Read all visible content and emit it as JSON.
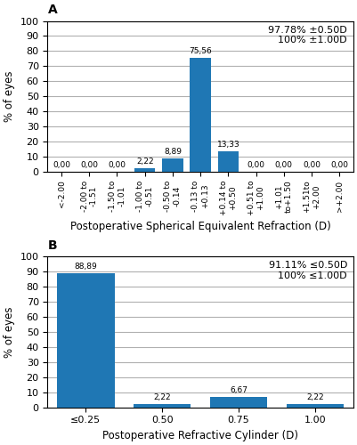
{
  "chart_data": [
    {
      "type": "bar",
      "panel_label": "A",
      "categories": [
        "<-2.00",
        "-2.00 to\n-1.51",
        "-1.50 to\n-1.01",
        "-1.00 to\n-0.51",
        "-0.50 to\n-0.14",
        "-0.13 to\n+0.13",
        "+0.14 to\n+0.50",
        "+0.51 to\n+1.00",
        "+1.01\nto+1.50",
        "+1.51to\n+2.00",
        ">+2.00"
      ],
      "values": [
        0.0,
        0.0,
        0.0,
        2.22,
        8.89,
        75.56,
        13.33,
        0.0,
        0.0,
        0.0,
        0.0
      ],
      "value_labels": [
        "0,00",
        "0,00",
        "0,00",
        "2,22",
        "8,89",
        "75,56",
        "13,33",
        "0,00",
        "0,00",
        "0,00",
        "0,00"
      ],
      "data_labels": true,
      "ylabel": "% of eyes",
      "xlabel": "Postoperative Spherical Equivalent Refraction (D)",
      "ylim": [
        0,
        100
      ],
      "yticks": [
        0,
        10,
        20,
        30,
        40,
        50,
        60,
        70,
        80,
        90,
        100
      ],
      "annotation": "97.78% ±0.50D\n100% ±1.00D",
      "grid": true
    },
    {
      "type": "bar",
      "panel_label": "B",
      "categories": [
        "≤0.25",
        "0.50",
        "0.75",
        "1.00"
      ],
      "values": [
        88.89,
        2.22,
        6.67,
        2.22
      ],
      "value_labels": [
        "88,89",
        "2,22",
        "6,67",
        "2,22"
      ],
      "data_labels": true,
      "ylabel": "% of eyes",
      "xlabel": "Postoperative Refractive Cylinder (D)",
      "ylim": [
        0,
        100
      ],
      "yticks": [
        0,
        10,
        20,
        30,
        40,
        50,
        60,
        70,
        80,
        90,
        100
      ],
      "annotation": "91.11% ≤0.50D\n100% ≤1.00D",
      "grid": true
    }
  ]
}
